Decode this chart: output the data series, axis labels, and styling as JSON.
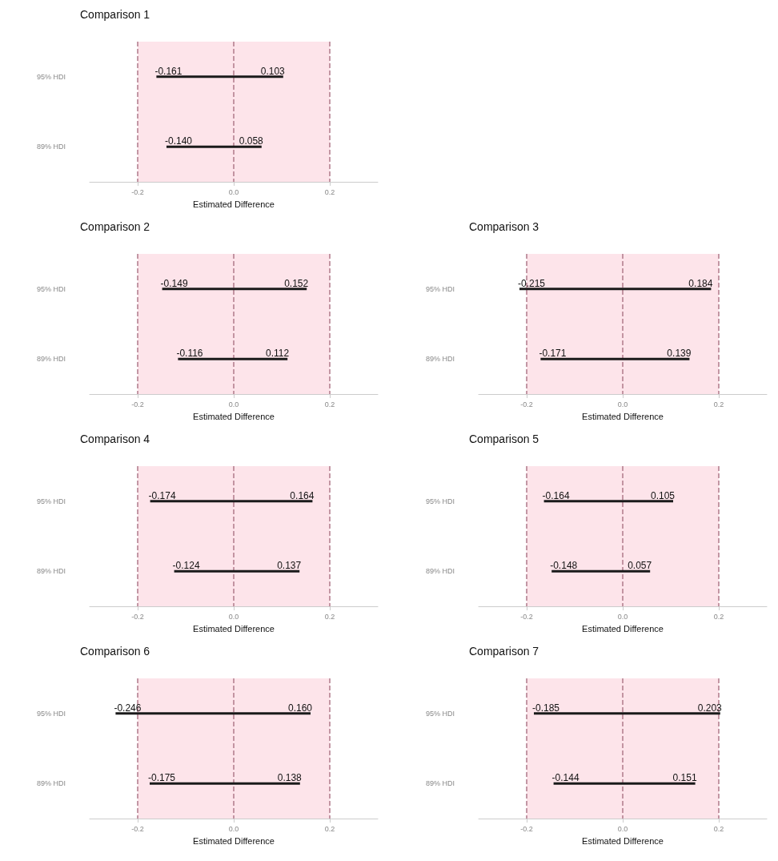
{
  "chart_data": [
    {
      "type": "bar",
      "title": "Comparison 1",
      "xlabel": "Estimated Difference",
      "orientation": "horizontal",
      "categories": [
        "95% HDI",
        "89% HDI"
      ],
      "base": [
        -0.161,
        -0.14
      ],
      "values": [
        0.264,
        0.198
      ],
      "color": "#1a1a1a",
      "xlim": [
        -0.3,
        0.3
      ],
      "xticks": [
        {
          "value": -0.2,
          "label": "-0.2"
        },
        {
          "value": 0,
          "label": "0.0"
        },
        {
          "value": 0.2,
          "label": "0.2"
        }
      ],
      "grid": false,
      "bands": [
        {
          "axis": "x",
          "from": -0.2,
          "to": 0.2,
          "color": "#fde4ea"
        }
      ],
      "ref_lines": [
        {
          "axis": "x",
          "value": -0.2,
          "color": "#b07a8a",
          "line_style": "dashed"
        },
        {
          "axis": "x",
          "value": 0,
          "color": "#b07a8a",
          "line_style": "dashed"
        },
        {
          "axis": "x",
          "value": 0.2,
          "color": "#b07a8a",
          "line_style": "dashed"
        }
      ],
      "annotations": [
        {
          "text": "-0.161",
          "x": -0.161,
          "y": "95% HDI"
        },
        {
          "text": "0.103",
          "x": 0.103,
          "y": "95% HDI"
        },
        {
          "text": "-0.140",
          "x": -0.14,
          "y": "89% HDI"
        },
        {
          "text": "0.058",
          "x": 0.058,
          "y": "89% HDI"
        }
      ]
    },
    {
      "type": "bar",
      "title": "Comparison 2",
      "xlabel": "Estimated Difference",
      "orientation": "horizontal",
      "categories": [
        "95% HDI",
        "89% HDI"
      ],
      "base": [
        -0.149,
        -0.116
      ],
      "values": [
        0.301,
        0.228
      ],
      "color": "#1a1a1a",
      "xlim": [
        -0.3,
        0.3
      ],
      "xticks": [
        {
          "value": -0.2,
          "label": "-0.2"
        },
        {
          "value": 0,
          "label": "0.0"
        },
        {
          "value": 0.2,
          "label": "0.2"
        }
      ],
      "grid": false,
      "bands": [
        {
          "axis": "x",
          "from": -0.2,
          "to": 0.2,
          "color": "#fde4ea"
        }
      ],
      "ref_lines": [
        {
          "axis": "x",
          "value": -0.2,
          "color": "#b07a8a",
          "line_style": "dashed"
        },
        {
          "axis": "x",
          "value": 0,
          "color": "#b07a8a",
          "line_style": "dashed"
        },
        {
          "axis": "x",
          "value": 0.2,
          "color": "#b07a8a",
          "line_style": "dashed"
        }
      ],
      "annotations": [
        {
          "text": "-0.149",
          "x": -0.149,
          "y": "95% HDI"
        },
        {
          "text": "0.152",
          "x": 0.152,
          "y": "95% HDI"
        },
        {
          "text": "-0.116",
          "x": -0.116,
          "y": "89% HDI"
        },
        {
          "text": "0.112",
          "x": 0.112,
          "y": "89% HDI"
        }
      ]
    },
    {
      "type": "bar",
      "title": "Comparison 3",
      "xlabel": "Estimated Difference",
      "orientation": "horizontal",
      "categories": [
        "95% HDI",
        "89% HDI"
      ],
      "base": [
        -0.215,
        -0.171
      ],
      "values": [
        0.399,
        0.31
      ],
      "color": "#1a1a1a",
      "xlim": [
        -0.3,
        0.3
      ],
      "xticks": [
        {
          "value": -0.2,
          "label": "-0.2"
        },
        {
          "value": 0,
          "label": "0.0"
        },
        {
          "value": 0.2,
          "label": "0.2"
        }
      ],
      "grid": false,
      "bands": [
        {
          "axis": "x",
          "from": -0.2,
          "to": 0.2,
          "color": "#fde4ea"
        }
      ],
      "ref_lines": [
        {
          "axis": "x",
          "value": -0.2,
          "color": "#b07a8a",
          "line_style": "dashed"
        },
        {
          "axis": "x",
          "value": 0,
          "color": "#b07a8a",
          "line_style": "dashed"
        },
        {
          "axis": "x",
          "value": 0.2,
          "color": "#b07a8a",
          "line_style": "dashed"
        }
      ],
      "annotations": [
        {
          "text": "-0.215",
          "x": -0.215,
          "y": "95% HDI"
        },
        {
          "text": "0.184",
          "x": 0.184,
          "y": "95% HDI"
        },
        {
          "text": "-0.171",
          "x": -0.171,
          "y": "89% HDI"
        },
        {
          "text": "0.139",
          "x": 0.139,
          "y": "89% HDI"
        }
      ]
    },
    {
      "type": "bar",
      "title": "Comparison 4",
      "xlabel": "Estimated Difference",
      "orientation": "horizontal",
      "categories": [
        "95% HDI",
        "89% HDI"
      ],
      "base": [
        -0.174,
        -0.124
      ],
      "values": [
        0.338,
        0.261
      ],
      "color": "#1a1a1a",
      "xlim": [
        -0.3,
        0.3
      ],
      "xticks": [
        {
          "value": -0.2,
          "label": "-0.2"
        },
        {
          "value": 0,
          "label": "0.0"
        },
        {
          "value": 0.2,
          "label": "0.2"
        }
      ],
      "grid": false,
      "bands": [
        {
          "axis": "x",
          "from": -0.2,
          "to": 0.2,
          "color": "#fde4ea"
        }
      ],
      "ref_lines": [
        {
          "axis": "x",
          "value": -0.2,
          "color": "#b07a8a",
          "line_style": "dashed"
        },
        {
          "axis": "x",
          "value": 0,
          "color": "#b07a8a",
          "line_style": "dashed"
        },
        {
          "axis": "x",
          "value": 0.2,
          "color": "#b07a8a",
          "line_style": "dashed"
        }
      ],
      "annotations": [
        {
          "text": "-0.174",
          "x": -0.174,
          "y": "95% HDI"
        },
        {
          "text": "0.164",
          "x": 0.164,
          "y": "95% HDI"
        },
        {
          "text": "-0.124",
          "x": -0.124,
          "y": "89% HDI"
        },
        {
          "text": "0.137",
          "x": 0.137,
          "y": "89% HDI"
        }
      ]
    },
    {
      "type": "bar",
      "title": "Comparison 5",
      "xlabel": "Estimated Difference",
      "orientation": "horizontal",
      "categories": [
        "95% HDI",
        "89% HDI"
      ],
      "base": [
        -0.164,
        -0.148
      ],
      "values": [
        0.269,
        0.205
      ],
      "color": "#1a1a1a",
      "xlim": [
        -0.3,
        0.3
      ],
      "xticks": [
        {
          "value": -0.2,
          "label": "-0.2"
        },
        {
          "value": 0,
          "label": "0.0"
        },
        {
          "value": 0.2,
          "label": "0.2"
        }
      ],
      "grid": false,
      "bands": [
        {
          "axis": "x",
          "from": -0.2,
          "to": 0.2,
          "color": "#fde4ea"
        }
      ],
      "ref_lines": [
        {
          "axis": "x",
          "value": -0.2,
          "color": "#b07a8a",
          "line_style": "dashed"
        },
        {
          "axis": "x",
          "value": 0,
          "color": "#b07a8a",
          "line_style": "dashed"
        },
        {
          "axis": "x",
          "value": 0.2,
          "color": "#b07a8a",
          "line_style": "dashed"
        }
      ],
      "annotations": [
        {
          "text": "-0.164",
          "x": -0.164,
          "y": "95% HDI"
        },
        {
          "text": "0.105",
          "x": 0.105,
          "y": "95% HDI"
        },
        {
          "text": "-0.148",
          "x": -0.148,
          "y": "89% HDI"
        },
        {
          "text": "0.057",
          "x": 0.057,
          "y": "89% HDI"
        }
      ]
    },
    {
      "type": "bar",
      "title": "Comparison 6",
      "xlabel": "Estimated Difference",
      "orientation": "horizontal",
      "categories": [
        "95% HDI",
        "89% HDI"
      ],
      "base": [
        -0.246,
        -0.175
      ],
      "values": [
        0.406,
        0.313
      ],
      "color": "#1a1a1a",
      "xlim": [
        -0.3,
        0.3
      ],
      "xticks": [
        {
          "value": -0.2,
          "label": "-0.2"
        },
        {
          "value": 0,
          "label": "0.0"
        },
        {
          "value": 0.2,
          "label": "0.2"
        }
      ],
      "grid": false,
      "bands": [
        {
          "axis": "x",
          "from": -0.2,
          "to": 0.2,
          "color": "#fde4ea"
        }
      ],
      "ref_lines": [
        {
          "axis": "x",
          "value": -0.2,
          "color": "#b07a8a",
          "line_style": "dashed"
        },
        {
          "axis": "x",
          "value": 0,
          "color": "#b07a8a",
          "line_style": "dashed"
        },
        {
          "axis": "x",
          "value": 0.2,
          "color": "#b07a8a",
          "line_style": "dashed"
        }
      ],
      "annotations": [
        {
          "text": "-0.246",
          "x": -0.246,
          "y": "95% HDI"
        },
        {
          "text": "0.160",
          "x": 0.16,
          "y": "95% HDI"
        },
        {
          "text": "-0.175",
          "x": -0.175,
          "y": "89% HDI"
        },
        {
          "text": "0.138",
          "x": 0.138,
          "y": "89% HDI"
        }
      ]
    },
    {
      "type": "bar",
      "title": "Comparison 7",
      "xlabel": "Estimated Difference",
      "orientation": "horizontal",
      "categories": [
        "95% HDI",
        "89% HDI"
      ],
      "base": [
        -0.185,
        -0.144
      ],
      "values": [
        0.388,
        0.295
      ],
      "color": "#1a1a1a",
      "xlim": [
        -0.3,
        0.3
      ],
      "xticks": [
        {
          "value": -0.2,
          "label": "-0.2"
        },
        {
          "value": 0,
          "label": "0.0"
        },
        {
          "value": 0.2,
          "label": "0.2"
        }
      ],
      "grid": false,
      "bands": [
        {
          "axis": "x",
          "from": -0.2,
          "to": 0.2,
          "color": "#fde4ea"
        }
      ],
      "ref_lines": [
        {
          "axis": "x",
          "value": -0.2,
          "color": "#b07a8a",
          "line_style": "dashed"
        },
        {
          "axis": "x",
          "value": 0,
          "color": "#b07a8a",
          "line_style": "dashed"
        },
        {
          "axis": "x",
          "value": 0.2,
          "color": "#b07a8a",
          "line_style": "dashed"
        }
      ],
      "annotations": [
        {
          "text": "-0.185",
          "x": -0.185,
          "y": "95% HDI"
        },
        {
          "text": "0.203",
          "x": 0.203,
          "y": "95% HDI"
        },
        {
          "text": "-0.144",
          "x": -0.144,
          "y": "89% HDI"
        },
        {
          "text": "0.151",
          "x": 0.151,
          "y": "89% HDI"
        }
      ]
    }
  ]
}
